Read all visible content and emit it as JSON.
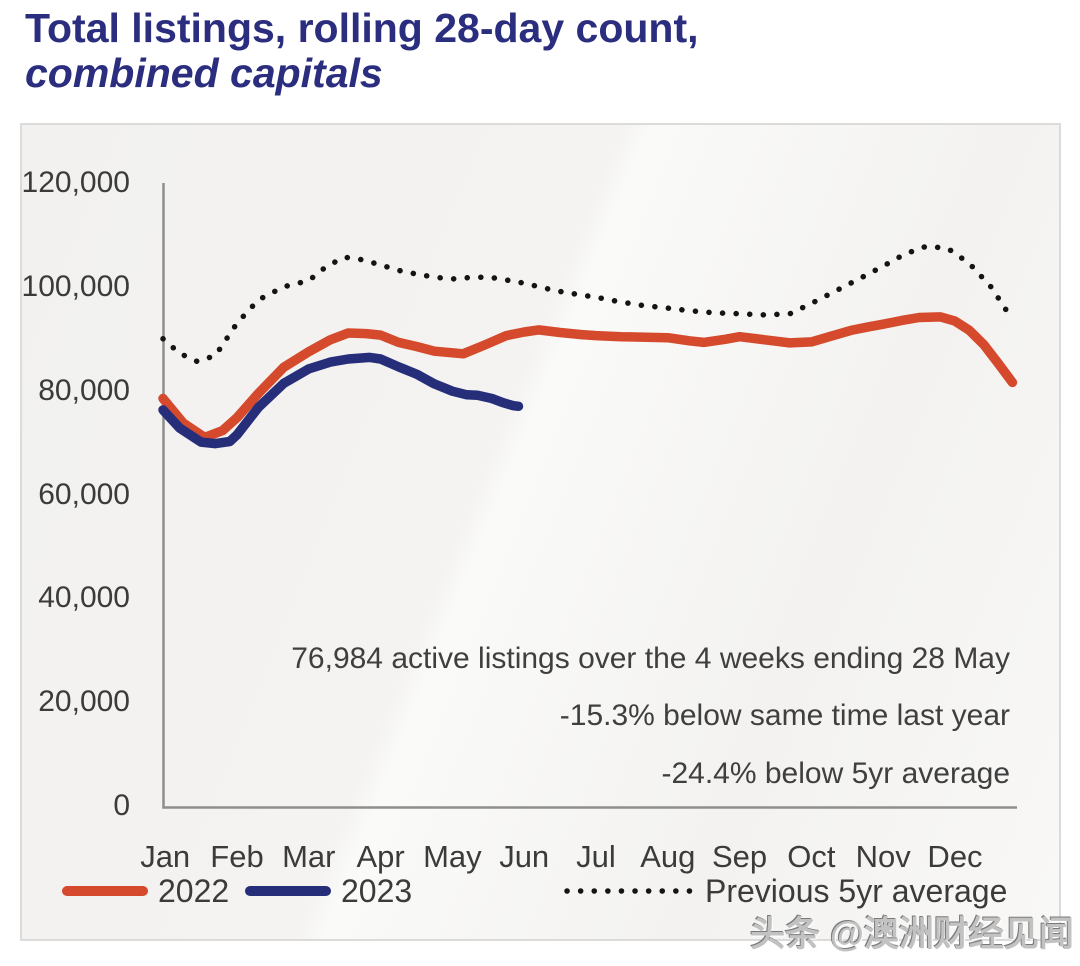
{
  "title": {
    "line1": "Total listings, rolling 28-day count,",
    "line2": "combined capitals"
  },
  "annotations": [
    "76,984 active listings over the 4 weeks ending 28 May",
    "-15.3% below same time last year",
    "-24.4% below 5yr average"
  ],
  "watermark": "头条 @澳洲财经见闻",
  "colors": {
    "title_text": "#2b2d7e",
    "series_2022": "#d54a2c",
    "series_2023": "#262e7a",
    "series_5yr_avg": "#141414",
    "axis_line": "#8e8e8e",
    "tick_text": "#3b3b3b",
    "panel_background": "#f4f3f1"
  },
  "chart_data": {
    "type": "line",
    "title": "Total listings, rolling 28-day count, combined capitals",
    "xlabel": "",
    "ylabel": "",
    "grid": false,
    "legend_position": "bottom",
    "ylim": [
      0,
      120000
    ],
    "y_ticks": [
      120000,
      100000,
      80000,
      60000,
      40000,
      20000,
      0
    ],
    "y_tick_labels": [
      "120,000",
      "100,000",
      "80,000",
      "60,000",
      "40,000",
      "20,000",
      "0"
    ],
    "x_tick_labels": [
      "Jan",
      "Feb",
      "Mar",
      "Apr",
      "May",
      "Jun",
      "Jul",
      "Aug",
      "Sep",
      "Oct",
      "Nov",
      "Dec"
    ],
    "legend": [
      {
        "label": "2022",
        "style": "solid",
        "color": "#d54a2c"
      },
      {
        "label": "2023",
        "style": "solid",
        "color": "#262e7a"
      },
      {
        "label": "Previous 5yr average",
        "style": "dotted",
        "color": "#141414"
      }
    ],
    "series": [
      {
        "name": "2022",
        "style": "solid",
        "color": "#d54a2c",
        "points": [
          [
            0.97,
            78500
          ],
          [
            1.25,
            73800
          ],
          [
            1.55,
            71000
          ],
          [
            1.8,
            72300
          ],
          [
            2.0,
            74800
          ],
          [
            2.3,
            79500
          ],
          [
            2.65,
            84500
          ],
          [
            3.0,
            87500
          ],
          [
            3.3,
            89800
          ],
          [
            3.55,
            91100
          ],
          [
            3.8,
            91000
          ],
          [
            4.0,
            90700
          ],
          [
            4.25,
            89300
          ],
          [
            4.5,
            88500
          ],
          [
            4.75,
            87600
          ],
          [
            5.0,
            87300
          ],
          [
            5.15,
            87100
          ],
          [
            5.45,
            88800
          ],
          [
            5.75,
            90600
          ],
          [
            6.0,
            91300
          ],
          [
            6.2,
            91700
          ],
          [
            6.5,
            91200
          ],
          [
            6.8,
            90800
          ],
          [
            7.0,
            90600
          ],
          [
            7.35,
            90400
          ],
          [
            7.7,
            90300
          ],
          [
            8.0,
            90200
          ],
          [
            8.3,
            89600
          ],
          [
            8.5,
            89300
          ],
          [
            8.8,
            89900
          ],
          [
            9.0,
            90400
          ],
          [
            9.35,
            89800
          ],
          [
            9.7,
            89200
          ],
          [
            10.0,
            89400
          ],
          [
            10.25,
            90400
          ],
          [
            10.55,
            91600
          ],
          [
            10.8,
            92300
          ],
          [
            11.0,
            92800
          ],
          [
            11.25,
            93500
          ],
          [
            11.5,
            94100
          ],
          [
            11.8,
            94200
          ],
          [
            12.0,
            93400
          ],
          [
            12.2,
            91600
          ],
          [
            12.4,
            88900
          ],
          [
            12.6,
            85300
          ],
          [
            12.8,
            81600
          ]
        ]
      },
      {
        "name": "2023",
        "style": "solid",
        "color": "#262e7a",
        "points": [
          [
            0.97,
            76300
          ],
          [
            1.2,
            72800
          ],
          [
            1.5,
            70100
          ],
          [
            1.7,
            69800
          ],
          [
            1.9,
            70200
          ],
          [
            2.0,
            71500
          ],
          [
            2.3,
            76800
          ],
          [
            2.65,
            81400
          ],
          [
            3.0,
            84200
          ],
          [
            3.3,
            85500
          ],
          [
            3.55,
            86100
          ],
          [
            3.85,
            86400
          ],
          [
            4.0,
            86100
          ],
          [
            4.25,
            84600
          ],
          [
            4.5,
            83200
          ],
          [
            4.75,
            81300
          ],
          [
            5.0,
            79900
          ],
          [
            5.2,
            79200
          ],
          [
            5.35,
            79100
          ],
          [
            5.55,
            78500
          ],
          [
            5.7,
            77700
          ],
          [
            5.85,
            77100
          ],
          [
            5.92,
            76984
          ]
        ]
      },
      {
        "name": "Previous 5yr average",
        "style": "dotted",
        "color": "#141414",
        "points": [
          [
            0.97,
            90000
          ],
          [
            1.2,
            87200
          ],
          [
            1.45,
            85600
          ],
          [
            1.7,
            86800
          ],
          [
            2.0,
            93000
          ],
          [
            2.3,
            97500
          ],
          [
            2.65,
            100000
          ],
          [
            3.0,
            101200
          ],
          [
            3.25,
            104000
          ],
          [
            3.5,
            105700
          ],
          [
            3.75,
            105200
          ],
          [
            4.0,
            104200
          ],
          [
            4.3,
            103000
          ],
          [
            4.6,
            102200
          ],
          [
            4.85,
            101700
          ],
          [
            5.0,
            101500
          ],
          [
            5.25,
            101800
          ],
          [
            5.5,
            101900
          ],
          [
            5.8,
            101200
          ],
          [
            6.0,
            100700
          ],
          [
            6.3,
            99700
          ],
          [
            6.5,
            99100
          ],
          [
            6.8,
            98400
          ],
          [
            7.0,
            98000
          ],
          [
            7.3,
            97200
          ],
          [
            7.6,
            96500
          ],
          [
            8.0,
            95900
          ],
          [
            8.3,
            95400
          ],
          [
            8.65,
            95000
          ],
          [
            9.0,
            94800
          ],
          [
            9.35,
            94600
          ],
          [
            9.7,
            94800
          ],
          [
            10.0,
            96800
          ],
          [
            10.35,
            99300
          ],
          [
            10.7,
            101800
          ],
          [
            11.0,
            104000
          ],
          [
            11.3,
            106300
          ],
          [
            11.6,
            107800
          ],
          [
            11.9,
            107400
          ],
          [
            12.2,
            104500
          ],
          [
            12.5,
            100000
          ],
          [
            12.7,
            95800
          ],
          [
            12.8,
            93400
          ]
        ]
      }
    ]
  }
}
